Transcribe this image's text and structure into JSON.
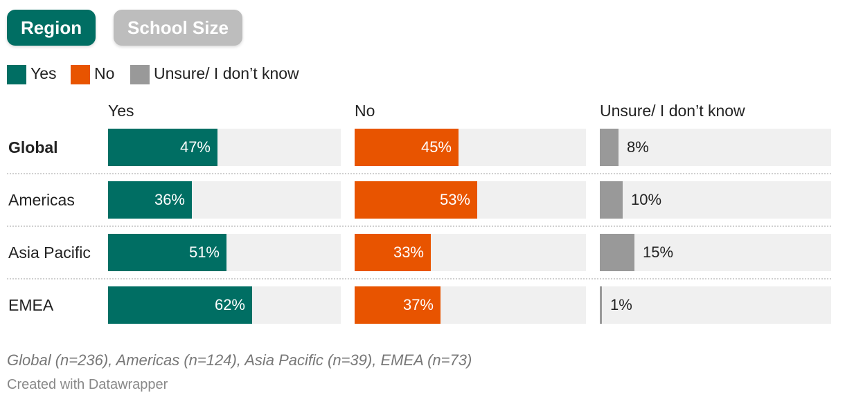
{
  "tabs": [
    {
      "label": "Region",
      "active": true
    },
    {
      "label": "School Size",
      "active": false
    }
  ],
  "colors": {
    "yes": "#006e63",
    "no": "#e85400",
    "unsure": "#999999",
    "track": "#f0f0f0",
    "active_tab": "#006e63",
    "inactive_tab": "#bdbdbd"
  },
  "chart_data": {
    "type": "bar",
    "orientation": "horizontal",
    "layout": "small-multiples",
    "xlim": [
      0,
      100
    ],
    "legend_placement": "top-left",
    "categories": [
      "Global",
      "Americas",
      "Asia Pacific",
      "EMEA"
    ],
    "series": [
      {
        "name": "Yes",
        "values": [
          47,
          36,
          51,
          62
        ],
        "labels": [
          "47%",
          "36%",
          "51%",
          "62%"
        ]
      },
      {
        "name": "No",
        "values": [
          45,
          53,
          33,
          37
        ],
        "labels": [
          "45%",
          "53%",
          "33%",
          "37%"
        ]
      },
      {
        "name": "Unsure/ I don’t know",
        "values": [
          8,
          10,
          15,
          1
        ],
        "labels": [
          "8%",
          "10%",
          "15%",
          "1%"
        ]
      }
    ],
    "notes": "Global (n=236), Americas (n=124), Asia Pacific (n=39), EMEA (n=73)",
    "credit": "Created with Datawrapper"
  }
}
